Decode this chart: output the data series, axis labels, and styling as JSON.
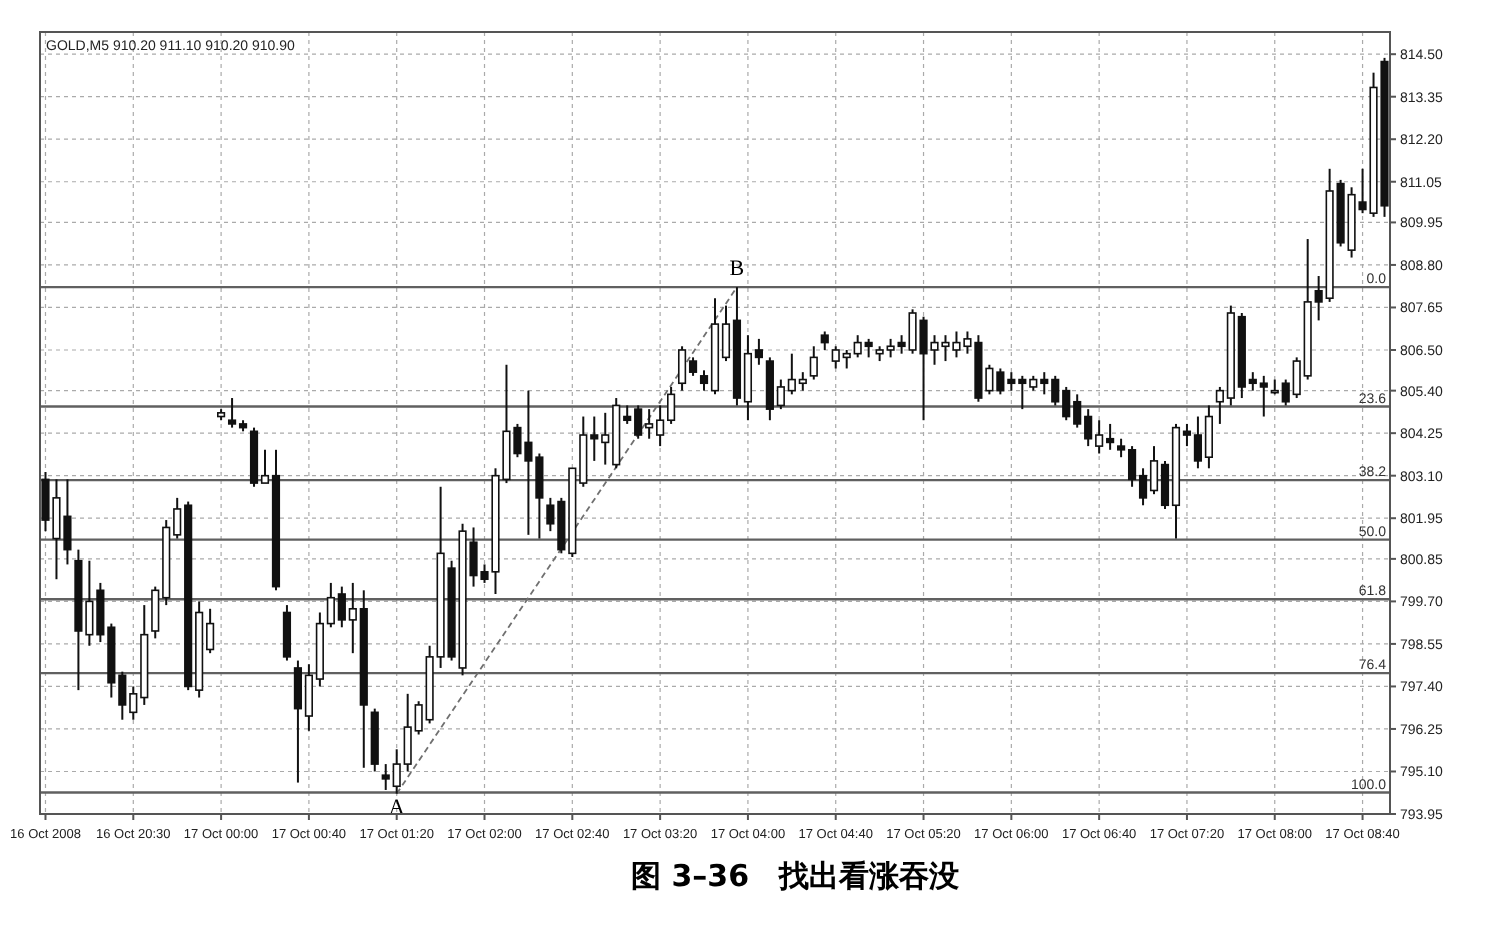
{
  "chart_data": {
    "type": "candlestick",
    "title": "图 3–36　找出看涨吞没",
    "subtitle": "GOLD,M5 910.20 911.10 910.20 910.90",
    "categories": [
      "16 Oct 2008",
      null,
      null,
      null,
      null,
      null,
      null,
      null,
      "16 Oct 20:30",
      null,
      null,
      null,
      null,
      null,
      null,
      null,
      "17 Oct 00:00",
      null,
      null,
      null,
      null,
      null,
      null,
      null,
      "17 Oct 00:40",
      null,
      null,
      null,
      null,
      null,
      null,
      null,
      "17 Oct 01:20",
      null,
      null,
      null,
      null,
      null,
      null,
      null,
      "17 Oct 02:00",
      null,
      null,
      null,
      null,
      null,
      null,
      null,
      "17 Oct 02:40",
      null,
      null,
      null,
      null,
      null,
      null,
      null,
      "17 Oct 03:20",
      null,
      null,
      null,
      null,
      null,
      null,
      null,
      "17 Oct 04:00",
      null,
      null,
      null,
      null,
      null,
      null,
      null,
      "17 Oct 04:40",
      null,
      null,
      null,
      null,
      null,
      null,
      null,
      "17 Oct 05:20",
      null,
      null,
      null,
      null,
      null,
      null,
      null,
      "17 Oct 06:00",
      null,
      null,
      null,
      null,
      null,
      null,
      null,
      "17 Oct 06:40",
      null,
      null,
      null,
      null,
      null,
      null,
      null,
      "17 Oct 07:20",
      null,
      null,
      null,
      null,
      null,
      null,
      null,
      "17 Oct 08:00",
      null,
      null,
      null,
      null,
      null,
      null,
      null,
      "17 Oct 08:40",
      null,
      null
    ],
    "ohlc": [
      [
        803.0,
        803.2,
        801.6,
        801.9
      ],
      [
        801.4,
        803.0,
        800.3,
        802.5
      ],
      [
        802.0,
        803.0,
        800.7,
        801.1
      ],
      [
        800.8,
        801.1,
        797.3,
        798.9
      ],
      [
        798.8,
        800.8,
        798.5,
        799.7
      ],
      [
        800.0,
        800.2,
        798.6,
        798.8
      ],
      [
        799.0,
        799.1,
        797.1,
        797.5
      ],
      [
        797.7,
        797.8,
        796.5,
        796.9
      ],
      [
        796.7,
        797.4,
        796.5,
        797.2
      ],
      [
        797.1,
        799.6,
        796.9,
        798.8
      ],
      [
        798.9,
        800.1,
        798.7,
        800.0
      ],
      [
        799.8,
        801.9,
        799.6,
        801.7
      ],
      [
        801.5,
        802.5,
        801.4,
        802.2
      ],
      [
        802.3,
        802.4,
        797.3,
        797.4
      ],
      [
        797.3,
        799.7,
        797.1,
        799.4
      ],
      [
        798.4,
        799.5,
        798.3,
        799.1
      ],
      [
        804.7,
        804.9,
        804.6,
        804.8
      ],
      [
        804.6,
        805.2,
        804.4,
        804.5
      ],
      [
        804.5,
        804.6,
        804.3,
        804.4
      ],
      [
        804.3,
        804.4,
        802.8,
        802.9
      ],
      [
        802.9,
        803.8,
        802.9,
        803.1
      ],
      [
        803.1,
        803.8,
        800.0,
        800.1
      ],
      [
        799.4,
        799.6,
        798.1,
        798.2
      ],
      [
        797.9,
        798.1,
        794.8,
        796.8
      ],
      [
        796.6,
        798.0,
        796.2,
        797.7
      ],
      [
        797.6,
        799.4,
        797.4,
        799.1
      ],
      [
        799.1,
        800.2,
        799.0,
        799.8
      ],
      [
        799.9,
        800.1,
        799.0,
        799.2
      ],
      [
        799.2,
        800.2,
        798.3,
        799.5
      ],
      [
        799.5,
        800.0,
        795.2,
        796.9
      ],
      [
        796.7,
        796.8,
        795.1,
        795.3
      ],
      [
        795.0,
        795.3,
        794.6,
        794.9
      ],
      [
        794.7,
        795.7,
        794.5,
        795.3
      ],
      [
        795.3,
        797.2,
        795.1,
        796.3
      ],
      [
        796.2,
        797.0,
        796.1,
        796.9
      ],
      [
        796.5,
        798.5,
        796.4,
        798.2
      ],
      [
        798.2,
        802.8,
        797.9,
        801.0
      ],
      [
        800.6,
        800.8,
        798.1,
        798.2
      ],
      [
        797.9,
        801.8,
        797.7,
        801.6
      ],
      [
        801.3,
        801.7,
        800.1,
        800.4
      ],
      [
        800.5,
        800.7,
        800.2,
        800.3
      ],
      [
        800.5,
        803.3,
        799.9,
        803.1
      ],
      [
        803.0,
        806.1,
        802.9,
        804.3
      ],
      [
        804.4,
        804.5,
        803.6,
        803.7
      ],
      [
        804.0,
        805.4,
        801.5,
        803.5
      ],
      [
        803.6,
        803.7,
        801.4,
        802.5
      ],
      [
        802.3,
        802.5,
        801.6,
        801.8
      ],
      [
        802.4,
        802.5,
        801.0,
        801.1
      ],
      [
        801.0,
        803.3,
        800.9,
        803.3
      ],
      [
        802.9,
        804.7,
        802.8,
        804.2
      ],
      [
        804.2,
        804.7,
        803.5,
        804.1
      ],
      [
        804.0,
        804.8,
        803.4,
        804.2
      ],
      [
        803.4,
        805.2,
        803.3,
        805.0
      ],
      [
        804.7,
        805.0,
        804.5,
        804.6
      ],
      [
        804.9,
        805.0,
        804.1,
        804.2
      ],
      [
        804.4,
        804.9,
        804.1,
        804.5
      ],
      [
        804.2,
        805.0,
        803.9,
        804.6
      ],
      [
        804.6,
        805.5,
        804.5,
        805.3
      ],
      [
        805.6,
        806.6,
        805.4,
        806.5
      ],
      [
        806.2,
        806.3,
        805.8,
        805.9
      ],
      [
        805.8,
        805.95,
        805.4,
        805.6
      ],
      [
        805.4,
        807.9,
        805.3,
        807.2
      ],
      [
        806.3,
        807.7,
        806.2,
        807.2
      ],
      [
        807.3,
        808.2,
        805.0,
        805.2
      ],
      [
        805.1,
        806.9,
        804.6,
        806.4
      ],
      [
        806.5,
        806.8,
        806.1,
        806.3
      ],
      [
        806.2,
        806.3,
        804.6,
        804.9
      ],
      [
        805.0,
        805.7,
        804.9,
        805.5
      ],
      [
        805.4,
        806.4,
        805.3,
        805.7
      ],
      [
        805.6,
        805.9,
        805.4,
        805.7
      ],
      [
        805.8,
        806.6,
        805.7,
        806.3
      ],
      [
        806.9,
        807.0,
        806.5,
        806.7
      ],
      [
        806.2,
        806.6,
        806.0,
        806.5
      ],
      [
        806.3,
        806.5,
        806.0,
        806.4
      ],
      [
        806.4,
        806.9,
        806.3,
        806.7
      ],
      [
        806.7,
        806.8,
        806.3,
        806.6
      ],
      [
        806.4,
        806.6,
        806.2,
        806.5
      ],
      [
        806.5,
        806.8,
        806.3,
        806.6
      ],
      [
        806.7,
        806.9,
        806.4,
        806.6
      ],
      [
        806.5,
        807.6,
        806.4,
        807.5
      ],
      [
        807.3,
        807.4,
        804.6,
        806.4
      ],
      [
        806.5,
        806.9,
        806.1,
        806.7
      ],
      [
        806.6,
        806.9,
        806.2,
        806.7
      ],
      [
        806.5,
        807.0,
        806.3,
        806.7
      ],
      [
        806.6,
        807.0,
        806.4,
        806.8
      ],
      [
        806.7,
        806.9,
        805.1,
        805.2
      ],
      [
        805.4,
        806.1,
        805.3,
        806.0
      ],
      [
        805.9,
        806.0,
        805.3,
        805.4
      ],
      [
        805.7,
        805.9,
        805.4,
        805.6
      ],
      [
        805.7,
        805.8,
        804.9,
        805.6
      ],
      [
        805.5,
        805.8,
        805.4,
        805.7
      ],
      [
        805.7,
        805.9,
        805.3,
        805.6
      ],
      [
        805.7,
        805.8,
        805.0,
        805.1
      ],
      [
        805.4,
        805.5,
        804.6,
        804.7
      ],
      [
        805.1,
        805.3,
        804.4,
        804.5
      ],
      [
        804.7,
        804.9,
        803.9,
        804.1
      ],
      [
        803.9,
        804.6,
        803.7,
        804.2
      ],
      [
        804.1,
        804.5,
        803.8,
        804.0
      ],
      [
        803.9,
        804.1,
        803.6,
        803.8
      ],
      [
        803.8,
        803.9,
        802.8,
        803.0
      ],
      [
        803.1,
        803.3,
        802.3,
        802.5
      ],
      [
        802.7,
        803.9,
        802.6,
        803.5
      ],
      [
        803.4,
        803.5,
        802.2,
        802.3
      ],
      [
        802.3,
        804.5,
        801.4,
        804.4
      ],
      [
        804.3,
        804.5,
        803.9,
        804.2
      ],
      [
        804.2,
        804.7,
        803.3,
        803.5
      ],
      [
        803.6,
        805.0,
        803.3,
        804.7
      ],
      [
        805.1,
        805.5,
        804.5,
        805.4
      ],
      [
        805.2,
        807.7,
        805.0,
        807.5
      ],
      [
        807.4,
        807.5,
        805.2,
        805.5
      ],
      [
        805.7,
        805.9,
        805.4,
        805.6
      ],
      [
        805.6,
        805.8,
        804.7,
        805.5
      ],
      [
        805.4,
        805.7,
        805.3,
        805.4
      ],
      [
        805.6,
        805.7,
        805.0,
        805.1
      ],
      [
        805.3,
        806.3,
        805.2,
        806.2
      ],
      [
        805.8,
        809.5,
        805.7,
        807.8
      ],
      [
        808.1,
        808.5,
        807.3,
        807.8
      ],
      [
        807.9,
        811.4,
        807.8,
        810.8
      ],
      [
        811.0,
        811.1,
        809.3,
        809.4
      ],
      [
        809.2,
        810.9,
        809.0,
        810.7
      ],
      [
        810.5,
        811.4,
        810.2,
        810.3
      ],
      [
        810.2,
        814.0,
        810.1,
        813.6
      ],
      [
        814.3,
        814.4,
        810.1,
        810.4
      ]
    ],
    "series": [
      {
        "type": "line",
        "line_style": "dashed",
        "color": "#707070",
        "values": [
          null,
          null,
          null,
          null,
          null,
          null,
          null,
          null,
          null,
          null,
          null,
          null,
          null,
          null,
          null,
          null,
          null,
          null,
          null,
          null,
          null,
          null,
          null,
          null,
          null,
          null,
          null,
          null,
          null,
          null,
          null,
          null,
          794.5,
          null,
          null,
          null,
          null,
          null,
          null,
          null,
          null,
          null,
          null,
          null,
          null,
          null,
          null,
          null,
          null,
          null,
          null,
          null,
          null,
          null,
          null,
          null,
          null,
          null,
          null,
          null,
          null,
          null,
          null,
          808.2,
          null,
          null,
          null,
          null,
          null,
          null,
          null,
          null,
          null,
          null,
          null,
          null,
          null,
          null,
          null,
          null,
          null,
          null,
          null,
          null,
          null,
          null,
          null,
          null,
          null,
          null,
          null,
          null,
          null,
          null,
          null,
          null,
          null,
          null,
          null,
          null,
          null,
          null,
          null,
          null,
          null,
          null,
          null,
          null,
          null,
          null,
          null,
          null,
          null,
          null,
          null,
          null,
          null,
          null,
          null,
          null,
          null,
          null,
          null
        ]
      }
    ],
    "ylim": [
      793.95,
      815.1
    ],
    "yticks": [
      793.95,
      {
        "value": 795.1,
        "label": "795.10"
      },
      796.25,
      {
        "value": 797.4,
        "label": "797.40"
      },
      798.55,
      {
        "value": 799.7,
        "label": "799.70"
      },
      800.85,
      801.95,
      {
        "value": 803.1,
        "label": "803.10"
      },
      804.25,
      {
        "value": 805.4,
        "label": "805.40"
      },
      {
        "value": 806.5,
        "label": "806.50"
      },
      807.65,
      {
        "value": 808.8,
        "label": "808.80"
      },
      809.95,
      811.05,
      {
        "value": 812.2,
        "label": "812.20"
      },
      813.35,
      {
        "value": 814.5,
        "label": "814.50"
      }
    ],
    "grid": true,
    "ref_lines": [
      {
        "axis": "y",
        "value": 808.2,
        "color": "#606060"
      },
      {
        "axis": "y",
        "value": 804.97,
        "color": "#606060"
      },
      {
        "axis": "y",
        "value": 802.98,
        "color": "#606060"
      },
      {
        "axis": "y",
        "value": 801.37,
        "color": "#606060"
      },
      {
        "axis": "y",
        "value": 799.76,
        "color": "#606060"
      },
      {
        "axis": "y",
        "value": 797.76,
        "color": "#606060"
      },
      {
        "axis": "y",
        "value": 794.53,
        "color": "#606060"
      }
    ],
    "annotations": [
      {
        "text": "B",
        "y": 808.2
      },
      {
        "text": "A",
        "y": 794.5
      },
      {
        "text": "0.0",
        "y": 808.2
      },
      {
        "text": "23.6",
        "y": 804.97
      },
      {
        "text": "38.2",
        "y": 802.98
      },
      {
        "text": "50.0",
        "y": 801.37
      },
      {
        "text": "61.8",
        "y": 799.76
      },
      {
        "text": "76.4",
        "y": 797.76
      },
      {
        "text": "100.0",
        "y": 794.53
      }
    ]
  }
}
